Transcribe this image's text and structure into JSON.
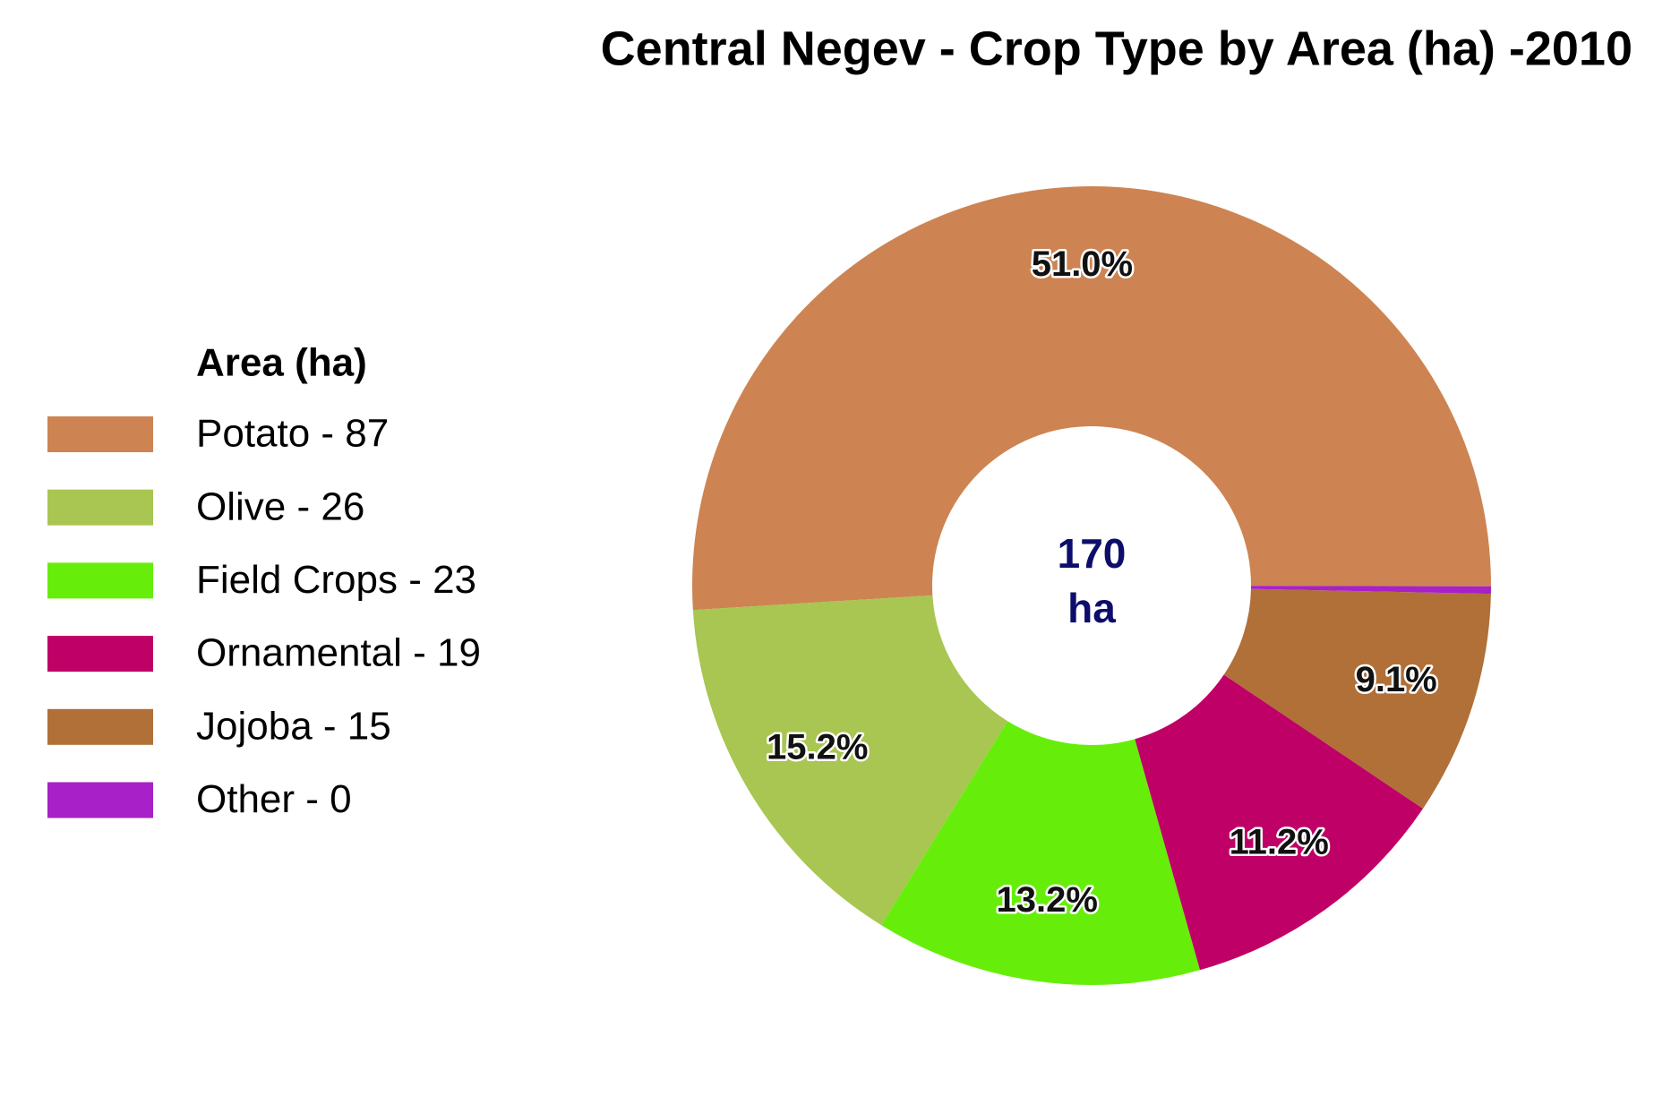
{
  "chart_data": {
    "type": "donut",
    "title": "Central Negev - Crop Type by Area (ha) -2010",
    "legend_title": "Area (ha)",
    "categories": [
      "Potato - 87",
      "Olive - 26",
      "Field Crops - 23",
      "Ornamental - 19",
      "Jojoba - 15",
      "Other - 0"
    ],
    "values": [
      51.0,
      15.2,
      13.2,
      11.2,
      9.1,
      0.3
    ],
    "value_labels": [
      "51.0%",
      "15.2%",
      "13.2%",
      "11.2%",
      "9.1%",
      null
    ],
    "colors": [
      "#cd8452",
      "#a8c651",
      "#66ee0a",
      "#bf0066",
      "#b07038",
      "#a820c8"
    ],
    "center_label": [
      "170",
      "ha"
    ],
    "legend": "left"
  }
}
